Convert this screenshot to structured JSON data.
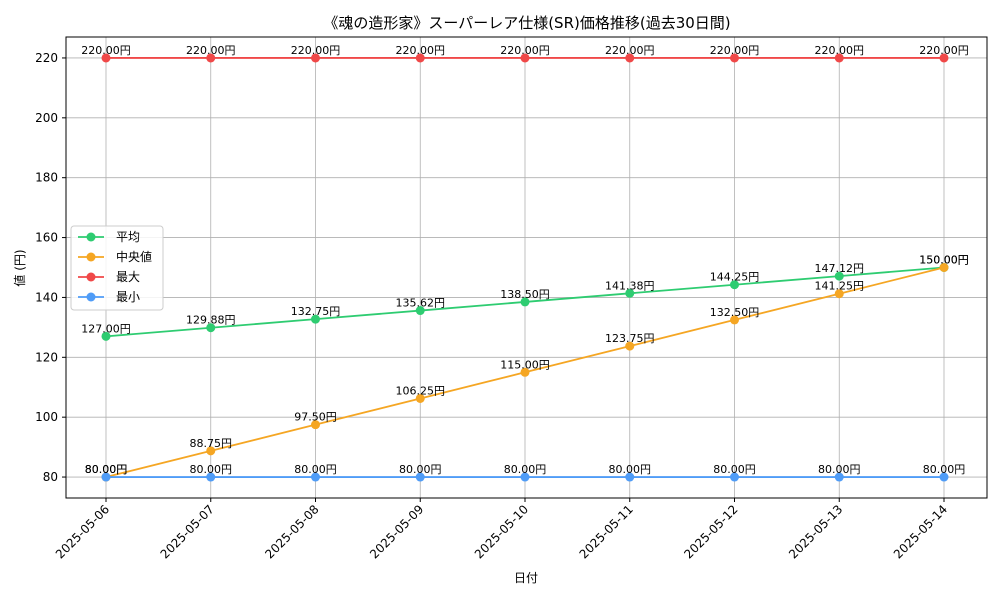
{
  "chart_data": {
    "type": "line",
    "title": "《魂の造形家》スーパーレア仕様(SR)価格推移(過去30日間)",
    "xlabel": "日付",
    "ylabel": "値 (円)",
    "value_suffix": "円",
    "ylim": [
      73,
      227
    ],
    "yticks": [
      80,
      100,
      120,
      140,
      160,
      180,
      200,
      220
    ],
    "grid": true,
    "legend_position": "center-left",
    "categories": [
      "2025-05-06",
      "2025-05-07",
      "2025-05-08",
      "2025-05-09",
      "2025-05-10",
      "2025-05-11",
      "2025-05-12",
      "2025-05-13",
      "2025-05-14"
    ],
    "series": [
      {
        "name": "平均",
        "color": "#2ecc71",
        "values": [
          127.0,
          129.88,
          132.75,
          135.62,
          138.5,
          141.38,
          144.25,
          147.12,
          150.0
        ]
      },
      {
        "name": "中央値",
        "color": "#f5a623",
        "values": [
          80.0,
          88.75,
          97.5,
          106.25,
          115.0,
          123.75,
          132.5,
          141.25,
          150.0
        ]
      },
      {
        "name": "最大",
        "color": "#f04848",
        "values": [
          220.0,
          220.0,
          220.0,
          220.0,
          220.0,
          220.0,
          220.0,
          220.0,
          220.0
        ]
      },
      {
        "name": "最小",
        "color": "#4f9cf7",
        "values": [
          80.0,
          80.0,
          80.0,
          80.0,
          80.0,
          80.0,
          80.0,
          80.0,
          80.0
        ]
      }
    ]
  }
}
